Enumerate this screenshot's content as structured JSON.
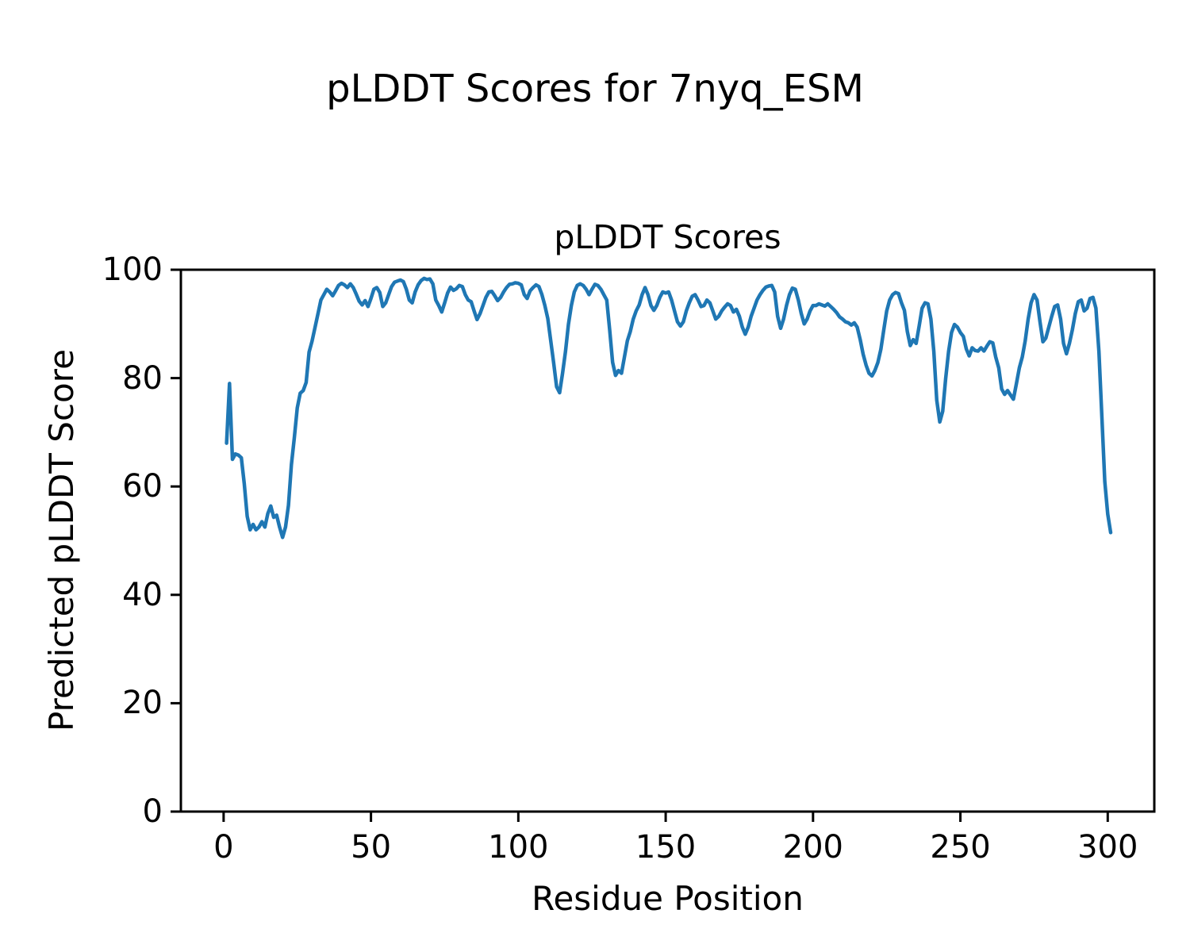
{
  "figure": {
    "suptitle": "pLDDT Scores for 7nyq_ESM",
    "background_color": "#ffffff",
    "text_color": "#000000"
  },
  "chart_data": {
    "type": "line",
    "title": "pLDDT Scores",
    "xlabel": "Residue Position",
    "ylabel": "Predicted pLDDT Score",
    "legend": "none",
    "grid": false,
    "x_ticks": [
      0,
      50,
      100,
      150,
      200,
      250,
      300
    ],
    "y_ticks": [
      0,
      20,
      40,
      60,
      80,
      100
    ],
    "xlim": [
      -14.5,
      315.8
    ],
    "ylim": [
      0,
      100
    ],
    "line_color": "#1f77b4",
    "spine_color": "#000000",
    "x_start": 1,
    "x_step": 1,
    "values": [
      68,
      79,
      65,
      66,
      65.8,
      65.3,
      60.5,
      54.5,
      52,
      53,
      52,
      52.5,
      53.5,
      52.5,
      55,
      56.4,
      54.3,
      54.7,
      52.5,
      50.6,
      52.5,
      56.5,
      64,
      69,
      74.5,
      77.2,
      77.7,
      79.2,
      84.8,
      86.8,
      89.3,
      91.8,
      94.4,
      95.4,
      96.4,
      95.9,
      95.2,
      96.1,
      97.1,
      97.5,
      97.2,
      96.7,
      97.4,
      96.7,
      95.5,
      94.2,
      93.5,
      94.3,
      93.2,
      94.7,
      96.4,
      96.7,
      95.8,
      93.2,
      93.9,
      95.4,
      96.9,
      97.7,
      97.9,
      98.1,
      97.8,
      96.4,
      94.4,
      93.9,
      95.9,
      97.2,
      98,
      98.4,
      98.2,
      98.3,
      97.4,
      94.4,
      93.4,
      92.2,
      93.9,
      95.7,
      96.8,
      96.2,
      96.5,
      97.1,
      96.9,
      95.4,
      94.4,
      94.1,
      92.4,
      90.8,
      91.9,
      93.4,
      94.9,
      95.9,
      96,
      95.2,
      94.3,
      94.9,
      95.9,
      96.7,
      97.3,
      97.4,
      97.6,
      97.5,
      97.2,
      95.4,
      94.7,
      96.1,
      96.7,
      97.2,
      96.9,
      95.4,
      93.4,
      91,
      86.9,
      82.8,
      78.4,
      77.3,
      80.9,
      84.9,
      89.9,
      93.4,
      95.9,
      97.1,
      97.4,
      97.1,
      96.4,
      95.4,
      96.4,
      97.3,
      97.1,
      96.4,
      95.4,
      94.4,
      88.9,
      82.9,
      80.5,
      81.4,
      80.9,
      83.9,
      86.9,
      88.6,
      90.9,
      92.4,
      93.5,
      95.4,
      96.7,
      95.4,
      93.4,
      92.5,
      93.4,
      94.9,
      95.9,
      95.7,
      95.9,
      94.4,
      92.4,
      90.4,
      89.6,
      90.4,
      92.4,
      93.9,
      95.1,
      95.4,
      94.4,
      93.2,
      93.4,
      94.4,
      93.9,
      92.4,
      90.9,
      91.4,
      92.4,
      93.1,
      93.7,
      93.4,
      92.2,
      92.7,
      91.4,
      89.4,
      88.1,
      89.4,
      91.4,
      92.9,
      94.4,
      95.4,
      96.2,
      96.8,
      97,
      97.1,
      95.9,
      91.4,
      89.2,
      90.9,
      93.4,
      95.4,
      96.6,
      96.4,
      94.4,
      91.9,
      90,
      90.9,
      92.4,
      93.4,
      93.4,
      93.7,
      93.5,
      93.3,
      93.7,
      93.2,
      92.7,
      92.1,
      91.3,
      90.9,
      90.4,
      90.2,
      89.8,
      90.2,
      89.4,
      87.1,
      84.4,
      82.4,
      80.9,
      80.4,
      81.4,
      82.9,
      85.3,
      88.9,
      92.4,
      94.4,
      95.4,
      95.8,
      95.6,
      93.9,
      92.5,
      88.6,
      86,
      87.1,
      86.4,
      89.6,
      92.9,
      93.9,
      93.7,
      90.9,
      84.9,
      75.9,
      71.9,
      73.9,
      79.9,
      84.9,
      88.4,
      89.9,
      89.4,
      88.4,
      87.7,
      85.4,
      84.1,
      85.6,
      85.1,
      85,
      85.6,
      85,
      85.9,
      86.7,
      86.5,
      83.9,
      81.9,
      78,
      77,
      77.7,
      76.9,
      76.1,
      78.9,
      81.9,
      83.9,
      86.9,
      90.9,
      93.9,
      95.4,
      94.4,
      90.4,
      86.7,
      87.4,
      89.4,
      91.4,
      93.2,
      93.5,
      90.9,
      86.4,
      84.5,
      86.4,
      88.9,
      91.9,
      94.1,
      94.4,
      92.4,
      92.9,
      94.7,
      94.9,
      92.9,
      84.9,
      72.9,
      60.9,
      54.9,
      51.5
    ]
  }
}
